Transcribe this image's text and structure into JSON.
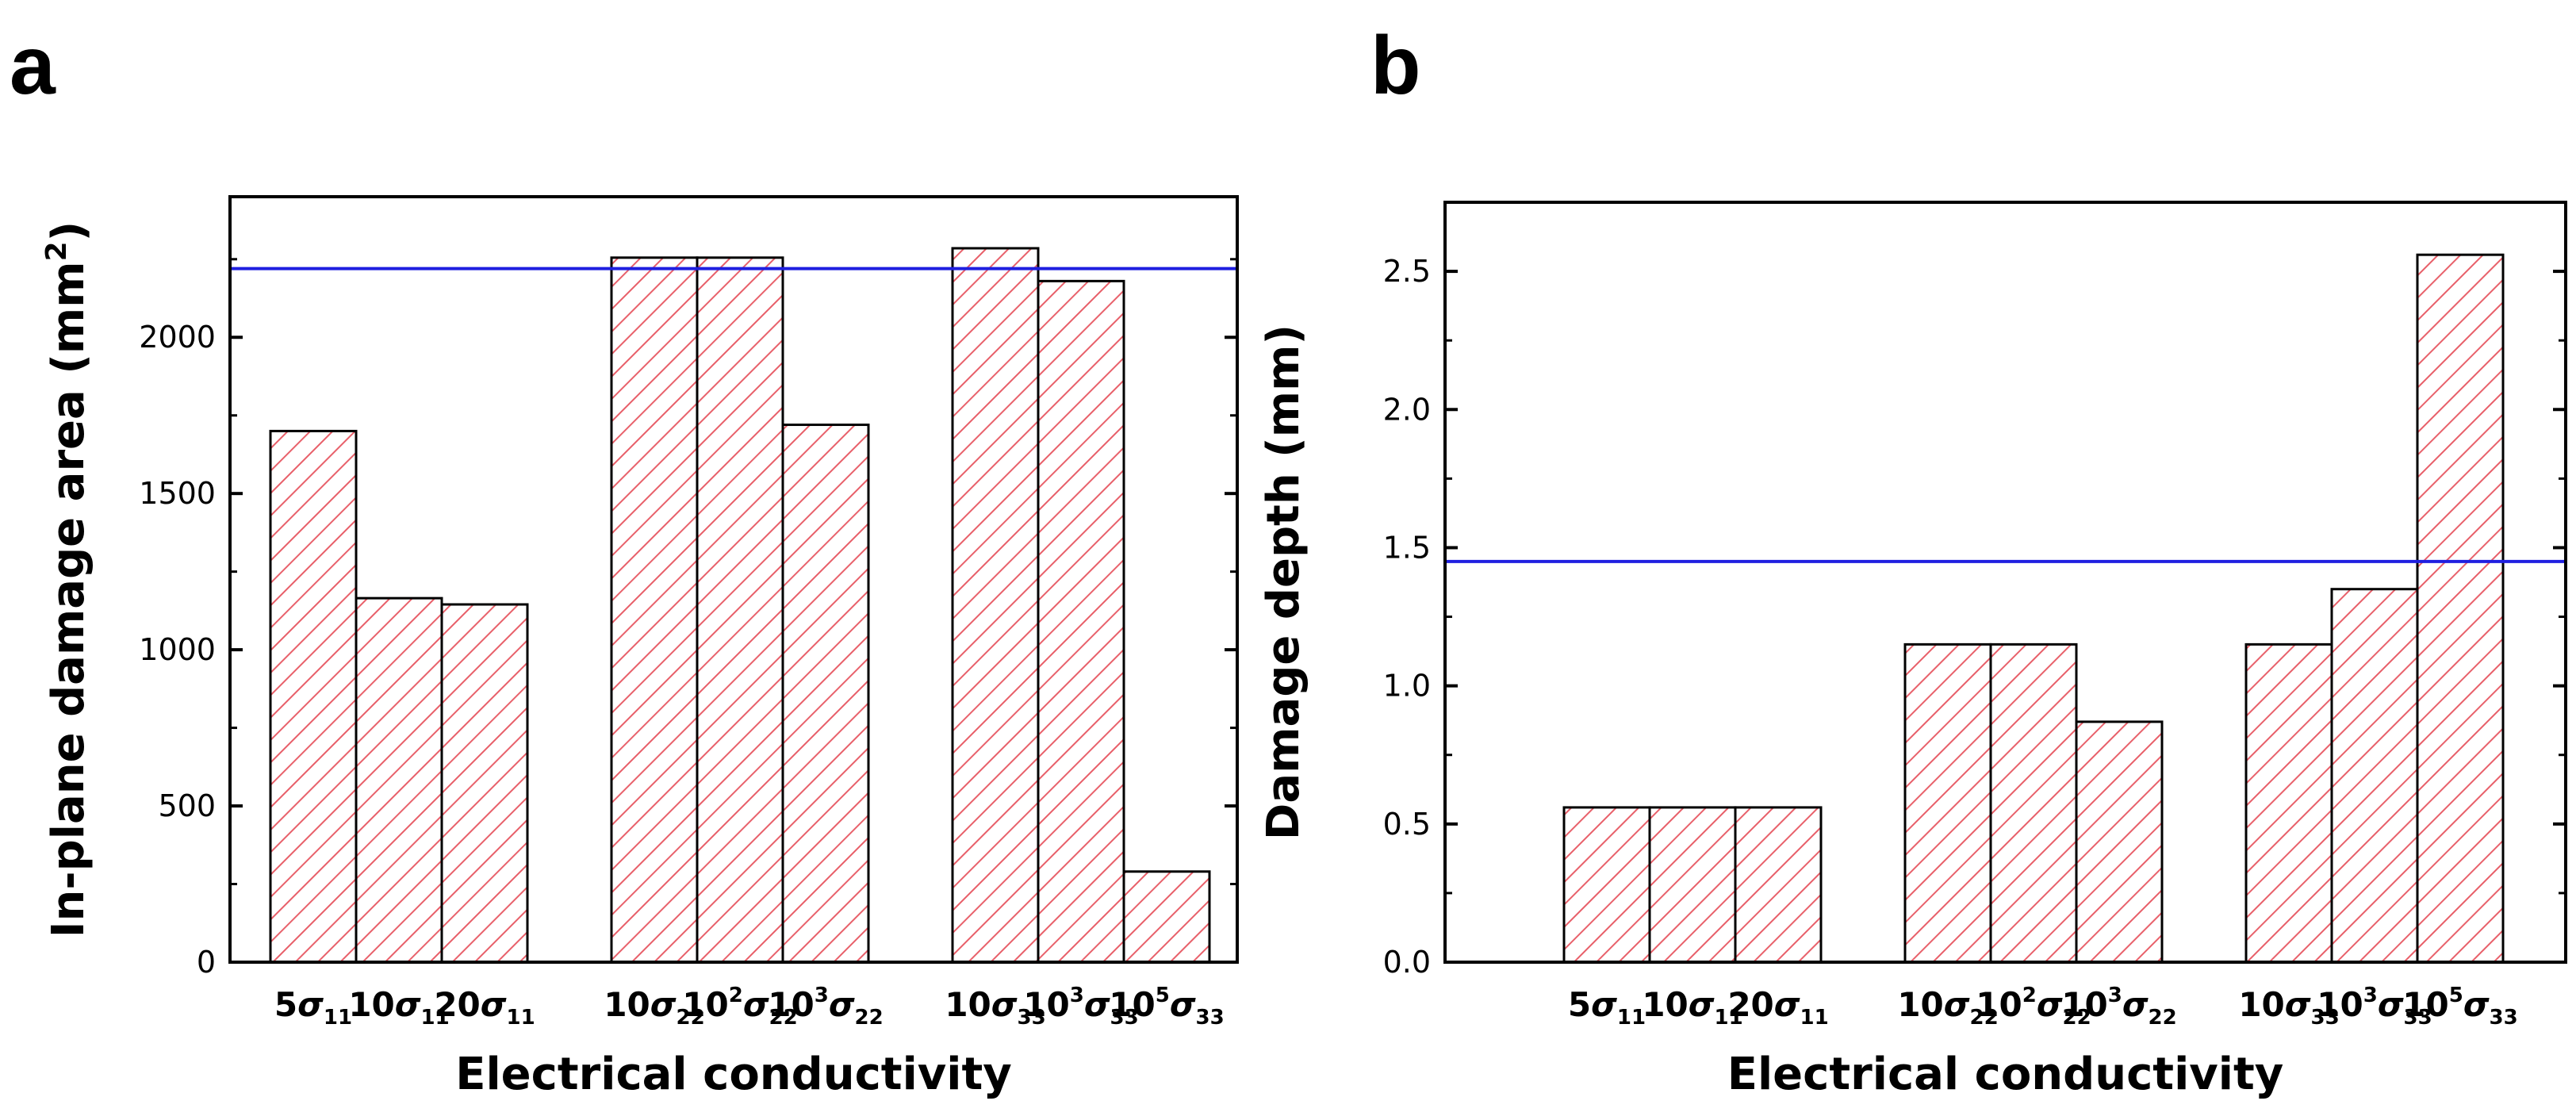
{
  "panels": [
    {
      "letter": "a"
    },
    {
      "letter": "b"
    }
  ],
  "chart_data": [
    {
      "type": "bar",
      "panel": "a",
      "categories": [
        {
          "coef": "5",
          "sup": "",
          "sub": "11"
        },
        {
          "coef": "10",
          "sup": "",
          "sub": "11"
        },
        {
          "coef": "20",
          "sup": "",
          "sub": "11"
        },
        {
          "coef": "10",
          "sup": "",
          "sub": "22"
        },
        {
          "coef": "10",
          "sup": "2",
          "sub": "22"
        },
        {
          "coef": "10",
          "sup": "3",
          "sub": "22"
        },
        {
          "coef": "10",
          "sup": "",
          "sub": "33"
        },
        {
          "coef": "10",
          "sup": "3",
          "sub": "33"
        },
        {
          "coef": "10",
          "sup": "5",
          "sub": "33"
        }
      ],
      "groups": [
        3,
        3,
        3
      ],
      "values": [
        1700,
        1165,
        1145,
        2255,
        2255,
        1720,
        2285,
        2180,
        290
      ],
      "reference_line": 2220,
      "xlabel": "Electrical conductivity",
      "ylabel": "In-plane damage area (mm",
      "ylabel_sup": "2",
      "ylabel_suffix": ")",
      "ylim": [
        0,
        2450
      ],
      "yticks": [
        0,
        500,
        1000,
        1500,
        2000
      ],
      "ytick_labels": [
        "0",
        "500",
        "1000",
        "1500",
        "2000"
      ],
      "sigma_symbol": "σ"
    },
    {
      "type": "bar",
      "panel": "b",
      "categories": [
        {
          "coef": "5",
          "sup": "",
          "sub": "11"
        },
        {
          "coef": "10",
          "sup": "",
          "sub": "11"
        },
        {
          "coef": "20",
          "sup": "",
          "sub": "11"
        },
        {
          "coef": "10",
          "sup": "",
          "sub": "22"
        },
        {
          "coef": "10",
          "sup": "2",
          "sub": "22"
        },
        {
          "coef": "10",
          "sup": "3",
          "sub": "22"
        },
        {
          "coef": "10",
          "sup": "",
          "sub": "33"
        },
        {
          "coef": "10",
          "sup": "3",
          "sub": "33"
        },
        {
          "coef": "10",
          "sup": "5",
          "sub": "33"
        }
      ],
      "groups": [
        3,
        3,
        3
      ],
      "values": [
        0.56,
        0.56,
        0.56,
        1.15,
        1.15,
        0.87,
        1.15,
        1.35,
        2.56
      ],
      "reference_line": 1.45,
      "xlabel": "Electrical conductivity",
      "ylabel": "Damage depth (mm)",
      "ylabel_sup": "",
      "ylabel_suffix": "",
      "ylim": [
        0,
        2.75
      ],
      "yticks": [
        0,
        0.5,
        1.0,
        1.5,
        2.0,
        2.5
      ],
      "ytick_labels": [
        "0.0",
        "0.5",
        "1.0",
        "1.5",
        "2.0",
        "2.5"
      ],
      "sigma_symbol": "σ"
    }
  ],
  "colors": {
    "hatch": "#e8606a",
    "bar_edge": "#000000",
    "reference_line": "#1f1fe0",
    "axis": "#000000"
  }
}
